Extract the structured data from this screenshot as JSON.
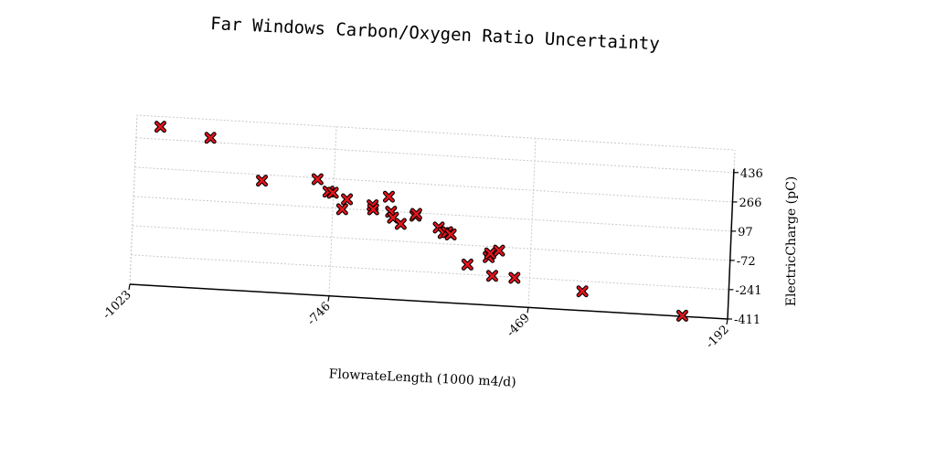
{
  "chart_data": {
    "type": "scatter",
    "title": "Far Windows Carbon/Oxygen Ratio Uncertainty",
    "xlabel": "FlowrateLength (1000 m4/d)",
    "ylabel": "ElectricCharge (pC)",
    "xlim": [
      -1023,
      -192
    ],
    "ylim": [
      -411,
      436
    ],
    "xticks": [
      -1023,
      -746,
      -469,
      -192
    ],
    "xtick_labels": [
      "-1023",
      "-746",
      "-469",
      "-192"
    ],
    "yticks": [
      -411,
      -241,
      -72,
      97,
      266,
      436
    ],
    "ytick_labels": [
      "-411",
      "-241",
      "-72",
      "97",
      "266",
      "436"
    ],
    "y_axis_side": "right",
    "grid": true,
    "marker": "x",
    "marker_color": "#e8141c",
    "points": [
      {
        "x": -990,
        "y": 508
      },
      {
        "x": -920,
        "y": 461
      },
      {
        "x": -846,
        "y": 231
      },
      {
        "x": -769,
        "y": 258
      },
      {
        "x": -753,
        "y": 190
      },
      {
        "x": -747,
        "y": 185
      },
      {
        "x": -733,
        "y": 93
      },
      {
        "x": -727,
        "y": 152
      },
      {
        "x": -691,
        "y": 126
      },
      {
        "x": -690,
        "y": 103
      },
      {
        "x": -669,
        "y": 181
      },
      {
        "x": -665,
        "y": 95
      },
      {
        "x": -662,
        "y": 61
      },
      {
        "x": -651,
        "y": 28
      },
      {
        "x": -631,
        "y": 80
      },
      {
        "x": -630,
        "y": 91
      },
      {
        "x": -598,
        "y": 20
      },
      {
        "x": -591,
        "y": -10
      },
      {
        "x": -586,
        "y": -4
      },
      {
        "x": -581,
        "y": -16
      },
      {
        "x": -556,
        "y": -184
      },
      {
        "x": -527,
        "y": -134
      },
      {
        "x": -525,
        "y": -112
      },
      {
        "x": -521,
        "y": -241
      },
      {
        "x": -513,
        "y": -93
      },
      {
        "x": -490,
        "y": -245
      },
      {
        "x": -395,
        "y": -300
      },
      {
        "x": -255,
        "y": -407
      }
    ]
  }
}
